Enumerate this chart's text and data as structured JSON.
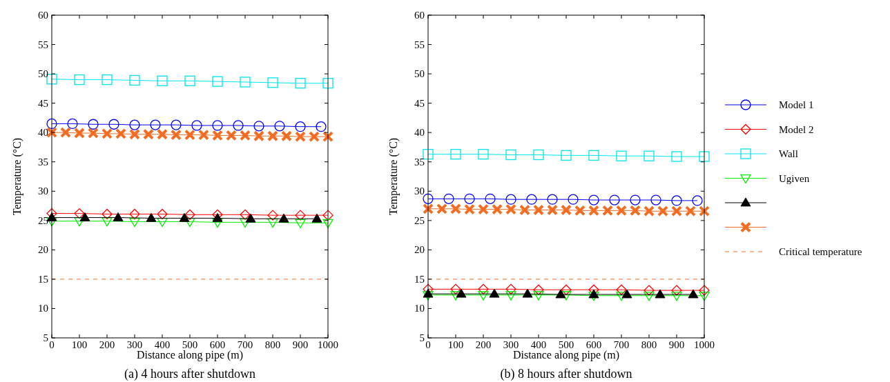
{
  "chart_data": [
    {
      "type": "line",
      "xlabel": "Distance along pipe (m)",
      "ylabel": "Temperature (°C)",
      "xlim": [
        0,
        1000
      ],
      "xticks": [
        0,
        100,
        200,
        300,
        400,
        500,
        600,
        700,
        800,
        900,
        1000
      ],
      "ylim": [
        5,
        60
      ],
      "yticks": [
        5,
        10,
        15,
        20,
        25,
        30,
        35,
        40,
        45,
        50,
        55,
        60
      ],
      "grid": false,
      "legend": false,
      "annotations": [
        "(a) 4 hours after shutdown"
      ],
      "series": [
        {
          "color": "#0000ff",
          "marker": "circle",
          "x": [
            0,
            75,
            150,
            225,
            300,
            375,
            450,
            525,
            600,
            675,
            750,
            825,
            900,
            975
          ],
          "values": [
            41.5,
            41.5,
            41.4,
            41.4,
            41.3,
            41.3,
            41.3,
            41.2,
            41.2,
            41.2,
            41.1,
            41.1,
            41.0,
            41.0
          ]
        },
        {
          "color": "#ff0000",
          "marker": "diamond",
          "x": [
            0,
            100,
            200,
            300,
            400,
            500,
            600,
            700,
            800,
            900,
            1000
          ],
          "values": [
            26.2,
            26.2,
            26.1,
            26.1,
            26.1,
            26.0,
            26.0,
            26.0,
            25.9,
            25.9,
            25.9
          ]
        },
        {
          "color": "#00e5ee",
          "marker": "square",
          "x": [
            0,
            100,
            200,
            300,
            400,
            500,
            600,
            700,
            800,
            900,
            1000
          ],
          "values": [
            49.1,
            49.0,
            49.0,
            48.9,
            48.8,
            48.8,
            48.7,
            48.6,
            48.5,
            48.4,
            48.4
          ]
        },
        {
          "color": "#00ee00",
          "marker": "triangle-down",
          "x": [
            0,
            100,
            200,
            300,
            400,
            500,
            600,
            700,
            800,
            900,
            1000
          ],
          "values": [
            24.9,
            24.9,
            24.9,
            24.8,
            24.8,
            24.8,
            24.7,
            24.7,
            24.7,
            24.6,
            24.6
          ]
        },
        {
          "color": "#000000",
          "marker": "triangle",
          "x": [
            0,
            120,
            240,
            360,
            480,
            600,
            720,
            840,
            960
          ],
          "values": [
            25.5,
            25.5,
            25.5,
            25.4,
            25.4,
            25.4,
            25.3,
            25.3,
            25.3
          ]
        },
        {
          "color": "#f36c21",
          "marker": "cross",
          "x": [
            0,
            50,
            100,
            150,
            200,
            250,
            300,
            350,
            400,
            450,
            500,
            550,
            600,
            650,
            700,
            750,
            800,
            850,
            900,
            950,
            1000
          ],
          "values": [
            40.0,
            40.0,
            39.9,
            39.9,
            39.8,
            39.8,
            39.7,
            39.7,
            39.7,
            39.6,
            39.6,
            39.6,
            39.5,
            39.5,
            39.5,
            39.4,
            39.4,
            39.4,
            39.3,
            39.3,
            39.3
          ]
        },
        {
          "color": "#f36c21",
          "marker": "none",
          "line_style": "dashed",
          "x": [
            0,
            1000
          ],
          "values": [
            15,
            15
          ]
        }
      ]
    },
    {
      "type": "line",
      "xlabel": "Distance along pipe (m)",
      "ylabel": "Temperature (°C)",
      "xlim": [
        0,
        1000
      ],
      "xticks": [
        0,
        100,
        200,
        300,
        400,
        500,
        600,
        700,
        800,
        900,
        1000
      ],
      "ylim": [
        5,
        60
      ],
      "yticks": [
        5,
        10,
        15,
        20,
        25,
        30,
        35,
        40,
        45,
        50,
        55,
        60
      ],
      "grid": false,
      "legend": "right",
      "annotations": [
        "(b) 8 hours after shutdown"
      ],
      "series": [
        {
          "name": "Model 1",
          "color": "#0000ff",
          "marker": "circle",
          "x": [
            0,
            75,
            150,
            225,
            300,
            375,
            450,
            525,
            600,
            675,
            750,
            825,
            900,
            975
          ],
          "values": [
            28.7,
            28.7,
            28.7,
            28.7,
            28.6,
            28.6,
            28.6,
            28.6,
            28.5,
            28.5,
            28.5,
            28.5,
            28.4,
            28.4
          ]
        },
        {
          "name": "Model 2",
          "color": "#ff0000",
          "marker": "diamond",
          "x": [
            0,
            100,
            200,
            300,
            400,
            500,
            600,
            700,
            800,
            900,
            1000
          ],
          "values": [
            13.3,
            13.3,
            13.3,
            13.3,
            13.2,
            13.2,
            13.2,
            13.2,
            13.1,
            13.1,
            13.1
          ]
        },
        {
          "name": "Wall",
          "color": "#00e5ee",
          "marker": "square",
          "x": [
            0,
            100,
            200,
            300,
            400,
            500,
            600,
            700,
            800,
            900,
            1000
          ],
          "values": [
            36.3,
            36.3,
            36.3,
            36.2,
            36.2,
            36.1,
            36.1,
            36.0,
            36.0,
            35.9,
            35.9
          ]
        },
        {
          "name": "Ugiven",
          "color": "#00ee00",
          "marker": "triangle-down",
          "x": [
            0,
            100,
            200,
            300,
            400,
            500,
            600,
            700,
            800,
            900,
            1000
          ],
          "values": [
            12.3,
            12.3,
            12.3,
            12.3,
            12.3,
            12.3,
            12.2,
            12.2,
            12.2,
            12.2,
            12.2
          ]
        },
        {
          "color": "#000000",
          "marker": "triangle",
          "x": [
            0,
            120,
            240,
            360,
            480,
            600,
            720,
            840,
            960
          ],
          "values": [
            12.5,
            12.5,
            12.5,
            12.5,
            12.4,
            12.4,
            12.4,
            12.4,
            12.4
          ]
        },
        {
          "color": "#f36c21",
          "marker": "cross",
          "x": [
            0,
            50,
            100,
            150,
            200,
            250,
            300,
            350,
            400,
            450,
            500,
            550,
            600,
            650,
            700,
            750,
            800,
            850,
            900,
            950,
            1000
          ],
          "values": [
            27.0,
            27.0,
            27.0,
            26.9,
            26.9,
            26.9,
            26.9,
            26.8,
            26.8,
            26.8,
            26.8,
            26.7,
            26.7,
            26.7,
            26.7,
            26.7,
            26.6,
            26.6,
            26.6,
            26.6,
            26.6
          ]
        },
        {
          "name": "Critical temperature",
          "color": "#f36c21",
          "marker": "none",
          "line_style": "dashed",
          "x": [
            0,
            1000
          ],
          "values": [
            15,
            15
          ]
        }
      ]
    }
  ]
}
